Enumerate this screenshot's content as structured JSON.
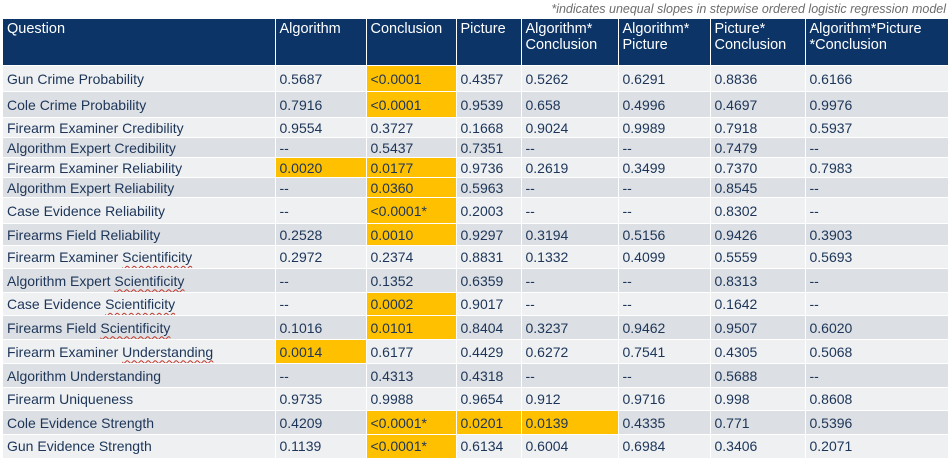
{
  "note": "*indicates unequal slopes in stepwise ordered logistic regression model",
  "columns": [
    "Question",
    "Algorithm",
    "Conclusion",
    "Picture",
    "Algorithm*\nConclusion",
    "Algorithm*\nPicture",
    "Picture*\nConclusion",
    "Algorithm*Picture\n*Conclusion"
  ],
  "highlight_color": "#ffc000",
  "header_color": "#0c3466",
  "rows": [
    {
      "q": "Gun Crime Probability",
      "v": [
        "0.5687",
        "<0.0001",
        "0.4357",
        "0.5262",
        "0.6291",
        "0.8836",
        "0.6166"
      ],
      "hl": [
        1
      ],
      "h": 26
    },
    {
      "q": "Cole Crime Probability",
      "v": [
        "0.7916",
        "<0.0001",
        "0.9539",
        "0.658",
        "0.4996",
        "0.4697",
        "0.9976"
      ],
      "hl": [
        1
      ],
      "h": 26
    },
    {
      "q": "Firearm Examiner Credibility",
      "v": [
        "0.9554",
        "0.3727",
        "0.1668",
        "0.9024",
        "0.9989",
        "0.7918",
        "0.5937"
      ],
      "hl": [],
      "h": 20
    },
    {
      "q": "Algorithm Expert Credibility",
      "v": [
        "--",
        "0.5437",
        "0.7351",
        "--",
        "--",
        "0.7479",
        "--"
      ],
      "hl": [],
      "h": 20
    },
    {
      "q": "Firearm Examiner Reliability",
      "v": [
        "0.0020",
        "0.0177",
        "0.9736",
        "0.2619",
        "0.3499",
        "0.7370",
        "0.7983"
      ],
      "hl": [
        0,
        1
      ],
      "h": 20
    },
    {
      "q": "Algorithm Expert Reliability",
      "v": [
        "--",
        "0.0360",
        "0.5963",
        "--",
        "--",
        "0.8545",
        "--"
      ],
      "hl": [
        1
      ],
      "h": 20
    },
    {
      "q": "Case Evidence Reliability",
      "v": [
        "--",
        "<0.0001*",
        "0.2003",
        "--",
        "--",
        "0.8302",
        "--"
      ],
      "hl": [
        1
      ],
      "h": 26
    },
    {
      "q": "Firearms Field Reliability",
      "v": [
        "0.2528",
        "0.0010",
        "0.9297",
        "0.3194",
        "0.5156",
        "0.9426",
        "0.3903"
      ],
      "hl": [
        1
      ],
      "h": 22
    },
    {
      "q": "Firearm Examiner Scientificity",
      "v": [
        "0.2972",
        "0.2374",
        "0.8831",
        "0.1332",
        "0.4099",
        "0.5559",
        "0.5693"
      ],
      "hl": [],
      "h": 23
    },
    {
      "q": "Algorithm Expert Scientificity",
      "v": [
        "--",
        "0.1352",
        "0.6359",
        "--",
        "--",
        "0.8313",
        "--"
      ],
      "hl": [],
      "h": 24
    },
    {
      "q": "Case Evidence Scientificity",
      "v": [
        "--",
        "0.0002",
        "0.9017",
        "--",
        "--",
        "0.1642",
        "--"
      ],
      "hl": [
        1
      ],
      "h": 23
    },
    {
      "q": "Firearms Field Scientificity",
      "v": [
        "0.1016",
        "0.0101",
        "0.8404",
        "0.3237",
        "0.9462",
        "0.9507",
        "0.6020"
      ],
      "hl": [
        1
      ],
      "h": 24
    },
    {
      "q": "Firearm Examiner Understanding",
      "v": [
        "0.0014",
        "0.6177",
        "0.4429",
        "0.6272",
        "0.7541",
        "0.4305",
        "0.5068"
      ],
      "hl": [
        0
      ],
      "h": 24
    },
    {
      "q": "Algorithm Understanding",
      "v": [
        "--",
        "0.4313",
        "0.4318",
        "--",
        "--",
        "0.5688",
        "--"
      ],
      "hl": [],
      "h": 24
    },
    {
      "q": "Firearm Uniqueness",
      "v": [
        "0.9735",
        "0.9988",
        "0.9654",
        "0.912",
        "0.9716",
        "0.998",
        "0.8608"
      ],
      "hl": [],
      "h": 23
    },
    {
      "q": "Cole Evidence Strength",
      "v": [
        "0.4209",
        "<0.0001*",
        "0.0201",
        "0.0139",
        "0.4335",
        "0.771",
        "0.5396"
      ],
      "hl": [
        1,
        2,
        3
      ],
      "h": 24
    },
    {
      "q": "Gun Evidence Strength",
      "v": [
        "0.1139",
        "<0.0001*",
        "0.6134",
        "0.6004",
        "0.6984",
        "0.3406",
        "0.2071"
      ],
      "hl": [
        1
      ],
      "h": 23
    }
  ]
}
